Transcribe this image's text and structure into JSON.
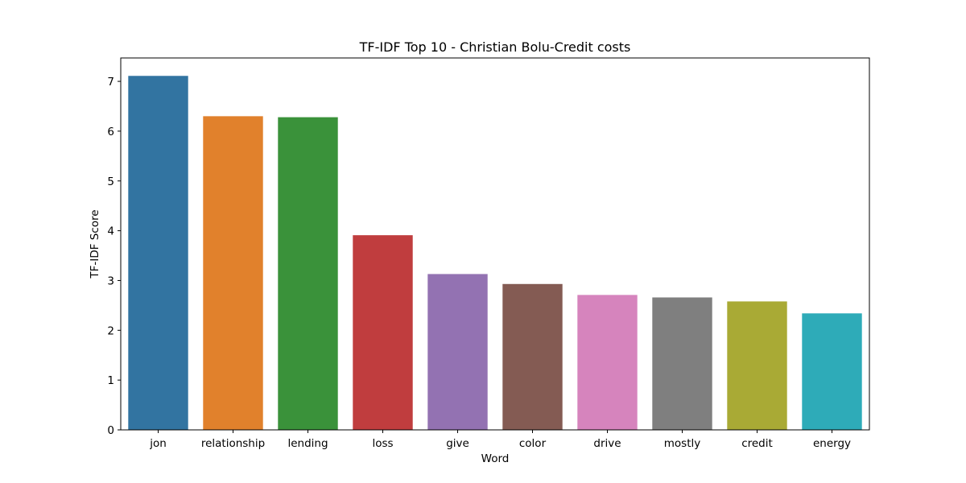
{
  "chart_data": {
    "type": "bar",
    "title": "TF-IDF Top 10 - Christian Bolu-Credit costs",
    "xlabel": "Word",
    "ylabel": "TF-IDF Score",
    "categories": [
      "jon",
      "relationship",
      "lending",
      "loss",
      "give",
      "color",
      "drive",
      "mostly",
      "credit",
      "energy"
    ],
    "values": [
      7.11,
      6.3,
      6.28,
      3.91,
      3.13,
      2.93,
      2.71,
      2.66,
      2.58,
      2.34
    ],
    "colors": [
      "#3274a1",
      "#e1812c",
      "#3a923a",
      "#c03d3e",
      "#9372b2",
      "#845b53",
      "#d684bd",
      "#7f7f7f",
      "#a9aa35",
      "#2eabb8"
    ],
    "ylim": [
      0,
      7.47
    ],
    "yticks": [
      0,
      1,
      2,
      3,
      4,
      5,
      6,
      7
    ],
    "grid": false,
    "legend": "none"
  }
}
